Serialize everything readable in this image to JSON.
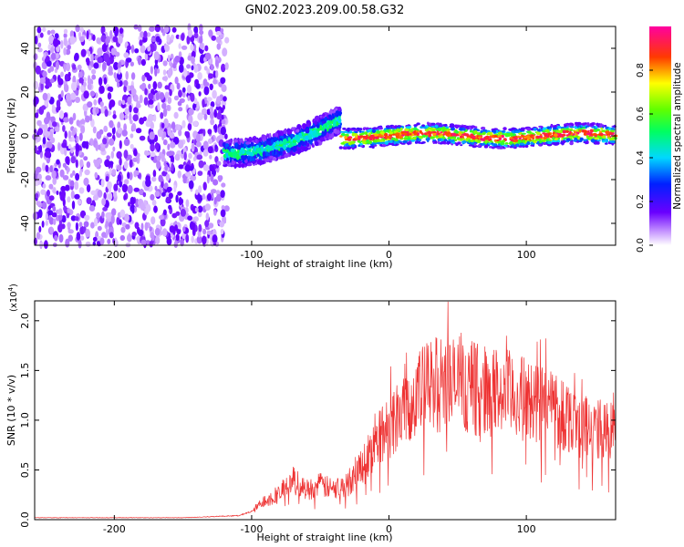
{
  "title": "GN02.2023.209.00.58.G32",
  "chart_data": [
    {
      "type": "heatmap",
      "title": "GN02.2023.209.00.58.G32",
      "xlabel": "Height of straight line (km)",
      "ylabel": "Frequency (Hz)",
      "xlim": [
        -258,
        165
      ],
      "ylim": [
        -50,
        50
      ],
      "xticks": [
        -200,
        -100,
        0,
        100
      ],
      "yticks": [
        -40,
        -20,
        0,
        20,
        40
      ],
      "colorbar": {
        "label": "Normalized spectral amplitude",
        "range": [
          0,
          1
        ],
        "ticks": [
          "0.0",
          "0.2",
          "0.4",
          "0.6",
          "0.8"
        ],
        "colormap": "rainbow (white-purple-blue-cyan-green-yellow-red-magenta)"
      },
      "regions": [
        {
          "x_range": [
            -258,
            -118
          ],
          "description": "scattered noise across all frequencies",
          "amplitude": 0.1
        },
        {
          "x_range": [
            -120,
            -35
          ],
          "trend": "frequency rises from -8 Hz to 8 Hz",
          "amplitude": 0.3
        },
        {
          "x_range": [
            -35,
            165
          ],
          "frequency": 0,
          "amplitude": 0.9
        }
      ],
      "colors": {
        "colormap_low": "#ffffff",
        "colormap_high": "#ff00ff"
      }
    },
    {
      "type": "line",
      "xlabel": "Height of straight line (km)",
      "ylabel": "SNR (10 * v/v)",
      "multiplier": "(x10^4)",
      "multiplier_base": "(x10",
      "multiplier_exp": "4",
      "multiplier_close": ")",
      "xlim": [
        -258,
        165
      ],
      "ylim": [
        0,
        2.2
      ],
      "xticks": [
        -200,
        -100,
        0,
        100
      ],
      "yticks": [
        "0.0",
        "0.5",
        "1.0",
        "1.5",
        "2.0"
      ],
      "color": "#ee3333",
      "envelope_points": [
        {
          "x": -258,
          "y": 0.02
        },
        {
          "x": -150,
          "y": 0.02
        },
        {
          "x": -110,
          "y": 0.04
        },
        {
          "x": -100,
          "y": 0.08
        },
        {
          "x": -90,
          "y": 0.2
        },
        {
          "x": -80,
          "y": 0.25
        },
        {
          "x": -70,
          "y": 0.4
        },
        {
          "x": -60,
          "y": 0.3
        },
        {
          "x": -50,
          "y": 0.35
        },
        {
          "x": -40,
          "y": 0.3
        },
        {
          "x": -30,
          "y": 0.35
        },
        {
          "x": -20,
          "y": 0.55
        },
        {
          "x": -10,
          "y": 0.75
        },
        {
          "x": 0,
          "y": 0.95
        },
        {
          "x": 10,
          "y": 1.15
        },
        {
          "x": 20,
          "y": 1.25
        },
        {
          "x": 30,
          "y": 1.35
        },
        {
          "x": 40,
          "y": 1.38
        },
        {
          "x": 50,
          "y": 1.35
        },
        {
          "x": 60,
          "y": 1.32
        },
        {
          "x": 70,
          "y": 1.3
        },
        {
          "x": 80,
          "y": 1.28
        },
        {
          "x": 90,
          "y": 1.25
        },
        {
          "x": 100,
          "y": 1.2
        },
        {
          "x": 110,
          "y": 1.18
        },
        {
          "x": 120,
          "y": 1.15
        },
        {
          "x": 130,
          "y": 1.05
        },
        {
          "x": 140,
          "y": 0.95
        },
        {
          "x": 150,
          "y": 0.9
        },
        {
          "x": 165,
          "y": 0.88
        }
      ]
    }
  ]
}
